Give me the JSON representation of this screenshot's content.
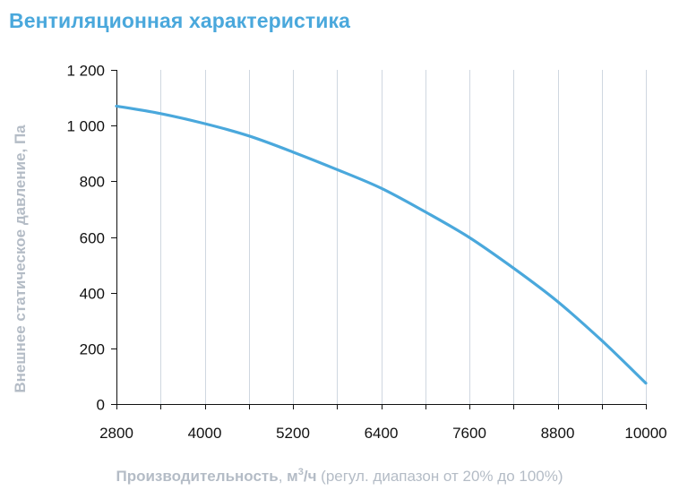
{
  "chart_data": {
    "type": "line",
    "title": "Вентиляционная характеристика",
    "ylabel": "Внешнее статическое давление, Па",
    "xlabel": {
      "main": "Производительность",
      "sep": ", ",
      "unit_prefix": "м",
      "unit_sup": "3",
      "unit_suffix": "/ч",
      "note": " (регул. диапазон от 20% до 100%)"
    },
    "xlim": [
      2800,
      10000
    ],
    "ylim": [
      0,
      1200
    ],
    "x_tick_labels": [
      "2800",
      "4000",
      "5200",
      "6400",
      "7600",
      "8800",
      "10000"
    ],
    "y_tick_labels": [
      "0",
      "200",
      "400",
      "600",
      "800",
      "1 000",
      "1 200"
    ],
    "x_ticks": [
      2800,
      4000,
      5200,
      6400,
      7600,
      8800,
      10000
    ],
    "y_ticks": [
      0,
      200,
      400,
      600,
      800,
      1000,
      1200
    ],
    "x_grid": [
      2800,
      3400,
      4000,
      4600,
      5200,
      5800,
      6400,
      7000,
      7600,
      8200,
      8800,
      9400,
      10000
    ],
    "grid": true,
    "series": [
      {
        "color": "#4aa8dc",
        "x": [
          2800,
          3400,
          4000,
          4600,
          5200,
          5800,
          6400,
          7000,
          7600,
          8200,
          8800,
          9400,
          10000
        ],
        "y": [
          1070,
          1043,
          1007,
          963,
          905,
          842,
          775,
          690,
          598,
          488,
          368,
          228,
          75
        ]
      }
    ],
    "colors": {
      "title": "#4aa8dc",
      "line": "#4aa8dc",
      "grid": "#cfd7e0",
      "axis": "#111111",
      "axis_title": "#b4bcc6"
    }
  }
}
